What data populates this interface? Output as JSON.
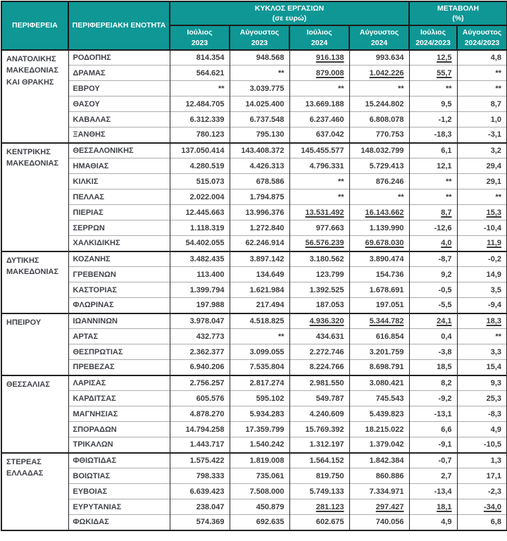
{
  "header": {
    "col_region": "ΠΕΡΙΦΕΡΕΙΑ",
    "col_unit": "ΠΕΡΙΦΕΡΕΙΑΚΗ ΕΝΟΤΗΤΑ",
    "group_turnover": "ΚΥΚΛΟΣ ΕΡΓΑΣΙΩΝ\n(σε ευρώ)",
    "group_change": "ΜΕΤΑΒΟΛΗ\n(%)",
    "subcols": [
      "Ιούλιος\n2023",
      "Αύγουστος\n2023",
      "Ιούλιος\n2024",
      "Αύγουστος\n2024",
      "Ιούλιος\n2024/2023",
      "Αύγουστος\n2024/2023"
    ]
  },
  "colors": {
    "header_bg": "#0E9795",
    "header_text": "#FFFFFF",
    "body_text": "#3C3C3C",
    "border_dark": "#222222",
    "border_light": "#AEAEAE"
  },
  "confidential_marker": "**",
  "regions": [
    {
      "name": "ΑΝΑΤΟΛΙΚΗΣ ΜΑΚΕΔΟΝΙΑΣ ΚΑΙ ΘΡΑΚΗΣ",
      "rows": [
        {
          "unit": "ΡΟΔΟΠΗΣ",
          "values": [
            "814.354",
            "948.568",
            "916.138",
            "993.634",
            "12,5",
            "4,8"
          ],
          "underlined": [
            2,
            4
          ]
        },
        {
          "unit": "ΔΡΑΜΑΣ",
          "values": [
            "564.621",
            "**",
            "879.008",
            "1.042.226",
            "55,7",
            "**"
          ],
          "underlined": [
            2,
            3,
            4
          ]
        },
        {
          "unit": "ΕΒΡΟΥ",
          "values": [
            "**",
            "3.039.775",
            "**",
            "**",
            "**",
            "**"
          ],
          "underlined": []
        },
        {
          "unit": "ΘΑΣΟΥ",
          "values": [
            "12.484.705",
            "14.025.400",
            "13.669.188",
            "15.244.802",
            "9,5",
            "8,7"
          ],
          "underlined": []
        },
        {
          "unit": "ΚΑΒΑΛΑΣ",
          "values": [
            "6.312.339",
            "6.737.548",
            "6.237.460",
            "6.808.078",
            "-1,2",
            "1,0"
          ],
          "underlined": []
        },
        {
          "unit": "ΞΑΝΘΗΣ",
          "values": [
            "780.123",
            "795.130",
            "637.042",
            "770.753",
            "-18,3",
            "-3,1"
          ],
          "underlined": []
        }
      ]
    },
    {
      "name": "ΚΕΝΤΡΙΚΗΣ ΜΑΚΕΔΟΝΙΑΣ",
      "rows": [
        {
          "unit": "ΘΕΣΣΑΛΟΝΙΚΗΣ",
          "values": [
            "137.050.414",
            "143.408.372",
            "145.455.577",
            "148.032.799",
            "6,1",
            "3,2"
          ],
          "underlined": []
        },
        {
          "unit": "ΗΜΑΘΙΑΣ",
          "values": [
            "4.280.519",
            "4.426.313",
            "4.796.331",
            "5.729.413",
            "12,1",
            "29,4"
          ],
          "underlined": []
        },
        {
          "unit": "ΚΙΛΚΙΣ",
          "values": [
            "515.073",
            "678.586",
            "**",
            "876.246",
            "**",
            "29,1"
          ],
          "underlined": []
        },
        {
          "unit": "ΠΕΛΛΑΣ",
          "values": [
            "2.022.004",
            "1.794.875",
            "**",
            "**",
            "**",
            "**"
          ],
          "underlined": []
        },
        {
          "unit": "ΠΙΕΡΙΑΣ",
          "values": [
            "12.445.663",
            "13.996.376",
            "13.531.492",
            "16.143.662",
            "8,7",
            "15,3"
          ],
          "underlined": [
            2,
            3,
            4,
            5
          ]
        },
        {
          "unit": "ΣΕΡΡΩΝ",
          "values": [
            "1.118.319",
            "1.272.840",
            "977.663",
            "1.139.990",
            "-12,6",
            "-10,4"
          ],
          "underlined": []
        },
        {
          "unit": "ΧΑΛΚΙΔΙΚΗΣ",
          "values": [
            "54.402.055",
            "62.246.914",
            "56.576.239",
            "69.678.030",
            "4,0",
            "11,9"
          ],
          "underlined": [
            2,
            3,
            4,
            5
          ]
        }
      ]
    },
    {
      "name": "ΔΥΤΙΚΗΣ ΜΑΚΕΔΟΝΙΑΣ",
      "rows": [
        {
          "unit": "ΚΟΖΑΝΗΣ",
          "values": [
            "3.482.435",
            "3.897.142",
            "3.180.562",
            "3.890.474",
            "-8,7",
            "-0,2"
          ],
          "underlined": []
        },
        {
          "unit": "ΓΡΕΒΕΝΩΝ",
          "values": [
            "113.400",
            "134.649",
            "123.799",
            "154.736",
            "9,2",
            "14,9"
          ],
          "underlined": []
        },
        {
          "unit": "ΚΑΣΤΟΡΙΑΣ",
          "values": [
            "1.399.794",
            "1.621.984",
            "1.392.525",
            "1.678.691",
            "-0,5",
            "3,5"
          ],
          "underlined": []
        },
        {
          "unit": "ΦΛΩΡΙΝΑΣ",
          "values": [
            "197.988",
            "217.494",
            "187.053",
            "197.051",
            "-5,5",
            "-9,4"
          ],
          "underlined": []
        }
      ]
    },
    {
      "name": "ΗΠΕΙΡΟΥ",
      "rows": [
        {
          "unit": "ΙΩΑΝΝΙΝΩΝ",
          "values": [
            "3.978.047",
            "4.518.825",
            "4.936.320",
            "5.344.782",
            "24,1",
            "18,3"
          ],
          "underlined": [
            2,
            3,
            4,
            5
          ]
        },
        {
          "unit": "ΑΡΤΑΣ",
          "values": [
            "432.773",
            "**",
            "434.631",
            "616.854",
            "0,4",
            "**"
          ],
          "underlined": []
        },
        {
          "unit": "ΘΕΣΠΡΩΤΙΑΣ",
          "values": [
            "2.362.377",
            "3.099.055",
            "2.272.746",
            "3.201.759",
            "-3,8",
            "3,3"
          ],
          "underlined": []
        },
        {
          "unit": "ΠΡΕΒΕΖΑΣ",
          "values": [
            "6.940.206",
            "7.535.804",
            "8.224.766",
            "8.698.791",
            "18,5",
            "15,4"
          ],
          "underlined": []
        }
      ]
    },
    {
      "name": "ΘΕΣΣΑΛΙΑΣ",
      "rows": [
        {
          "unit": "ΛΑΡΙΣΑΣ",
          "values": [
            "2.756.257",
            "2.817.274",
            "2.981.550",
            "3.080.421",
            "8,2",
            "9,3"
          ],
          "underlined": []
        },
        {
          "unit": "ΚΑΡΔΙΤΣΑΣ",
          "values": [
            "605.576",
            "595.102",
            "549.787",
            "745.543",
            "-9,2",
            "25,3"
          ],
          "underlined": []
        },
        {
          "unit": "ΜΑΓΝΗΣΙΑΣ",
          "values": [
            "4.878.270",
            "5.934.283",
            "4.240.609",
            "5.439.823",
            "-13,1",
            "-8,3"
          ],
          "underlined": []
        },
        {
          "unit": "ΣΠΟΡΑΔΩΝ",
          "values": [
            "14.794.258",
            "17.359.799",
            "15.769.392",
            "18.215.022",
            "6,6",
            "4,9"
          ],
          "underlined": []
        },
        {
          "unit": "ΤΡΙΚΑΛΩΝ",
          "values": [
            "1.443.717",
            "1.540.242",
            "1.312.197",
            "1.379.042",
            "-9,1",
            "-10,5"
          ],
          "underlined": []
        }
      ]
    },
    {
      "name": "ΣΤΕΡΕΑΣ ΕΛΛΑΔΑΣ",
      "rows": [
        {
          "unit": "ΦΘΙΩΤΙΔΑΣ",
          "values": [
            "1.575.422",
            "1.819.008",
            "1.564.152",
            "1.842.384",
            "-0,7",
            "1,3"
          ],
          "underlined": []
        },
        {
          "unit": "ΒΟΙΩΤΙΑΣ",
          "values": [
            "798.333",
            "735.061",
            "819.750",
            "860.886",
            "2,7",
            "17,1"
          ],
          "underlined": []
        },
        {
          "unit": "ΕΥΒΟΙΑΣ",
          "values": [
            "6.639.423",
            "7.508.000",
            "5.749.133",
            "7.334.971",
            "-13,4",
            "-2,3"
          ],
          "underlined": []
        },
        {
          "unit": "ΕΥΡΥΤΑΝΙΑΣ",
          "values": [
            "238.047",
            "450.879",
            "281.123",
            "297.427",
            "18,1",
            "-34,0"
          ],
          "underlined": [
            2,
            3,
            4,
            5
          ]
        },
        {
          "unit": "ΦΩΚΙΔΑΣ",
          "values": [
            "574.369",
            "692.635",
            "602.675",
            "740.056",
            "4,9",
            "6,8"
          ],
          "underlined": []
        }
      ]
    }
  ]
}
